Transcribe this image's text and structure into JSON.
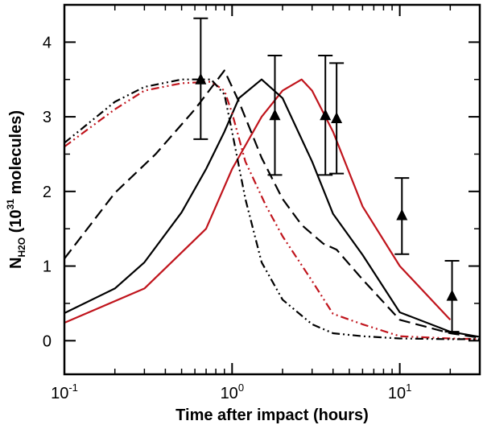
{
  "chart_data": {
    "type": "line",
    "title": "",
    "xlabel": "Time after impact (hours)",
    "ylabel": {
      "main": "N",
      "sub": "H2O",
      "paren_open": " (10",
      "sup": "31",
      "units": "  molecules)"
    },
    "xscale": "log",
    "xlim": [
      0.1,
      30
    ],
    "ylim": [
      -0.45,
      4.5
    ],
    "x_ticks": [
      {
        "value": 0.1,
        "base": "10",
        "exp": "-1"
      },
      {
        "value": 1,
        "base": "10",
        "exp": "0"
      },
      {
        "value": 10,
        "base": "10",
        "exp": "1"
      }
    ],
    "y_ticks": [
      0,
      1,
      2,
      3,
      4
    ],
    "grid": false,
    "legend": "none",
    "series": [
      {
        "name": "red-solid",
        "color": "#c0141c",
        "dash": "solid",
        "x": [
          0.1,
          0.3,
          0.7,
          1.0,
          1.5,
          2.0,
          2.6,
          3.0,
          4.0,
          6.0,
          10.0,
          20.0
        ],
        "y": [
          0.24,
          0.7,
          1.5,
          2.3,
          3.0,
          3.35,
          3.5,
          3.35,
          2.8,
          1.8,
          1.0,
          0.28
        ]
      },
      {
        "name": "black-solid",
        "color": "#000000",
        "dash": "solid",
        "x": [
          0.1,
          0.2,
          0.3,
          0.5,
          0.7,
          0.9,
          1.1,
          1.5,
          2.0,
          3.0,
          4.0,
          6.0,
          10.0,
          20.0,
          30.0
        ],
        "y": [
          0.37,
          0.7,
          1.05,
          1.72,
          2.3,
          2.8,
          3.25,
          3.5,
          3.25,
          2.4,
          1.7,
          1.15,
          0.38,
          0.12,
          0.05
        ]
      },
      {
        "name": "black-dashed",
        "color": "#000000",
        "dash": "dashed",
        "x": [
          0.1,
          0.2,
          0.35,
          0.6,
          0.9,
          1.1,
          1.5,
          2.0,
          2.6,
          3.5,
          4.2,
          6.0,
          10.0,
          20.0,
          30.0
        ],
        "y": [
          1.1,
          1.98,
          2.5,
          3.1,
          3.62,
          3.2,
          2.45,
          1.9,
          1.55,
          1.3,
          1.22,
          0.82,
          0.28,
          0.1,
          0.04
        ]
      },
      {
        "name": "red-dash-dot",
        "color": "#c0141c",
        "dash": "dashdotdot",
        "x": [
          0.1,
          0.2,
          0.3,
          0.5,
          0.75,
          0.9,
          1.0,
          1.2,
          1.6,
          2.0,
          3.0,
          4.0,
          6.0,
          10.0,
          20.0,
          30.0
        ],
        "y": [
          2.6,
          3.1,
          3.35,
          3.45,
          3.47,
          3.35,
          3.05,
          2.4,
          1.8,
          1.4,
          0.8,
          0.36,
          0.22,
          0.06,
          0.03,
          0.02
        ]
      },
      {
        "name": "black-dash-dot",
        "color": "#000000",
        "dash": "dashdotdot",
        "x": [
          0.1,
          0.2,
          0.3,
          0.5,
          0.75,
          0.9,
          1.0,
          1.2,
          1.5,
          2.0,
          3.0,
          4.0,
          6.0,
          10.0,
          20.0,
          30.0
        ],
        "y": [
          2.65,
          3.2,
          3.4,
          3.5,
          3.5,
          3.3,
          2.8,
          1.9,
          1.05,
          0.55,
          0.22,
          0.1,
          0.06,
          0.03,
          0.02,
          0.02
        ]
      }
    ],
    "observations": {
      "name": "measurements",
      "marker": "triangle",
      "color": "#000000",
      "points": [
        {
          "x": 0.65,
          "y": 3.5,
          "low": 2.7,
          "high": 4.32
        },
        {
          "x": 1.8,
          "y": 3.02,
          "low": 2.22,
          "high": 3.82
        },
        {
          "x": 3.6,
          "y": 3.02,
          "low": 2.22,
          "high": 3.82
        },
        {
          "x": 4.2,
          "y": 2.98,
          "low": 2.24,
          "high": 3.72
        },
        {
          "x": 10.3,
          "y": 1.68,
          "low": 1.16,
          "high": 2.18
        },
        {
          "x": 20.5,
          "y": 0.6,
          "low": 0.12,
          "high": 1.07
        }
      ]
    }
  }
}
